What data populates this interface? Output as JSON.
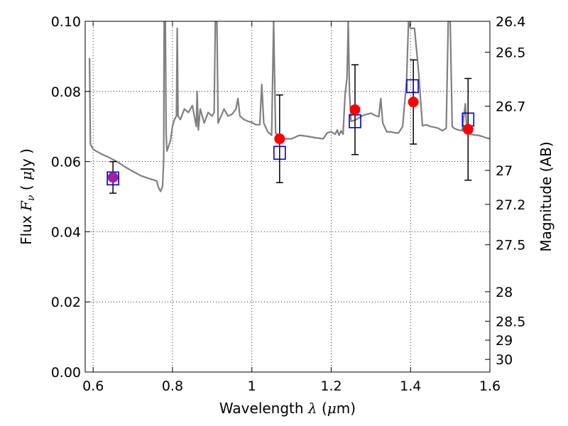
{
  "chart_data": {
    "type": "scatter",
    "title": "",
    "xlabel_parts": [
      "Wavelength ",
      "λ",
      " (",
      "μ",
      "m)"
    ],
    "ylabel_parts": [
      "Flux ",
      "F",
      "ν",
      " ( ",
      "μ",
      "Jy )"
    ],
    "y2label": "Magnitude (AB)",
    "xlim": [
      0.58,
      1.6
    ],
    "ylim": [
      0.0,
      0.1
    ],
    "x_ticks": [
      0.6,
      0.8,
      1.0,
      1.2,
      1.4,
      1.6
    ],
    "x_tick_labels": [
      "0.6",
      "0.8",
      "1",
      "1.2",
      "1.4",
      "1.6"
    ],
    "y_ticks": [
      0.0,
      0.02,
      0.04,
      0.06,
      0.08,
      0.1
    ],
    "y_tick_labels": [
      "0.00",
      "0.02",
      "0.04",
      "0.06",
      "0.08",
      "0.10"
    ],
    "y2_ticks": [
      {
        "label": "26.4",
        "flux": 0.1
      },
      {
        "label": "26.5",
        "flux": 0.0912
      },
      {
        "label": "26.7",
        "flux": 0.0758
      },
      {
        "label": "27",
        "flux": 0.0575
      },
      {
        "label": "27.2",
        "flux": 0.0478
      },
      {
        "label": "27.5",
        "flux": 0.0363
      },
      {
        "label": "28",
        "flux": 0.0229
      },
      {
        "label": "28.5",
        "flux": 0.0145
      },
      {
        "label": "29",
        "flux": 0.0091
      },
      {
        "label": "30",
        "flux": 0.0036
      }
    ],
    "grid": true,
    "model_spectrum": {
      "color": "#808080",
      "points": [
        [
          0.591,
          0.0895
        ],
        [
          0.593,
          0.065
        ],
        [
          0.6,
          0.0635
        ],
        [
          0.62,
          0.0622
        ],
        [
          0.64,
          0.0612
        ],
        [
          0.66,
          0.06
        ],
        [
          0.68,
          0.0585
        ],
        [
          0.7,
          0.0572
        ],
        [
          0.72,
          0.056
        ],
        [
          0.74,
          0.0552
        ],
        [
          0.76,
          0.0545
        ],
        [
          0.765,
          0.0525
        ],
        [
          0.77,
          0.0515
        ],
        [
          0.775,
          0.053
        ],
        [
          0.778,
          0.061
        ],
        [
          0.779,
          0.1
        ],
        [
          0.782,
          0.1
        ],
        [
          0.784,
          0.068
        ],
        [
          0.786,
          0.063
        ],
        [
          0.795,
          0.066
        ],
        [
          0.8,
          0.07
        ],
        [
          0.805,
          0.072
        ],
        [
          0.81,
          0.073
        ],
        [
          0.812,
          0.098
        ],
        [
          0.814,
          0.073
        ],
        [
          0.82,
          0.072
        ],
        [
          0.83,
          0.075
        ],
        [
          0.84,
          0.074
        ],
        [
          0.85,
          0.076
        ],
        [
          0.86,
          0.07
        ],
        [
          0.862,
          0.08
        ],
        [
          0.865,
          0.069
        ],
        [
          0.87,
          0.075
        ],
        [
          0.88,
          0.071
        ],
        [
          0.89,
          0.074
        ],
        [
          0.9,
          0.073
        ],
        [
          0.905,
          0.074
        ],
        [
          0.908,
          0.1
        ],
        [
          0.912,
          0.1
        ],
        [
          0.915,
          0.071
        ],
        [
          0.93,
          0.075
        ],
        [
          0.94,
          0.073
        ],
        [
          0.95,
          0.0735
        ],
        [
          0.96,
          0.075
        ],
        [
          0.965,
          0.078
        ],
        [
          0.97,
          0.073
        ],
        [
          0.98,
          0.072
        ],
        [
          0.99,
          0.0715
        ],
        [
          1.0,
          0.0712
        ],
        [
          1.01,
          0.0705
        ],
        [
          1.02,
          0.0705
        ],
        [
          1.025,
          0.082
        ],
        [
          1.03,
          0.071
        ],
        [
          1.04,
          0.0685
        ],
        [
          1.05,
          0.0675
        ],
        [
          1.055,
          0.1
        ],
        [
          1.06,
          0.068
        ],
        [
          1.07,
          0.0675
        ],
        [
          1.08,
          0.0665
        ],
        [
          1.1,
          0.0665
        ],
        [
          1.12,
          0.0675
        ],
        [
          1.14,
          0.0672
        ],
        [
          1.16,
          0.0668
        ],
        [
          1.18,
          0.0665
        ],
        [
          1.19,
          0.0682
        ],
        [
          1.2,
          0.0685
        ],
        [
          1.21,
          0.0678
        ],
        [
          1.215,
          0.069
        ],
        [
          1.22,
          0.0675
        ],
        [
          1.225,
          0.0688
        ],
        [
          1.23,
          0.0678
        ],
        [
          1.235,
          0.079
        ],
        [
          1.24,
          0.084
        ],
        [
          1.243,
          0.1
        ],
        [
          1.246,
          0.08
        ],
        [
          1.25,
          0.0715
        ],
        [
          1.26,
          0.0718
        ],
        [
          1.27,
          0.0725
        ],
        [
          1.28,
          0.0732
        ],
        [
          1.29,
          0.0735
        ],
        [
          1.3,
          0.0738
        ],
        [
          1.31,
          0.0732
        ],
        [
          1.32,
          0.0728
        ],
        [
          1.325,
          0.078
        ],
        [
          1.33,
          0.071
        ],
        [
          1.34,
          0.0685
        ],
        [
          1.35,
          0.0685
        ],
        [
          1.36,
          0.0682
        ],
        [
          1.37,
          0.0682
        ],
        [
          1.38,
          0.07
        ],
        [
          1.39,
          0.083
        ],
        [
          1.395,
          0.1
        ],
        [
          1.4,
          0.098
        ],
        [
          1.41,
          0.098
        ],
        [
          1.42,
          0.086
        ],
        [
          1.43,
          0.0702
        ],
        [
          1.44,
          0.0705
        ],
        [
          1.45,
          0.07
        ],
        [
          1.46,
          0.0698
        ],
        [
          1.47,
          0.0695
        ],
        [
          1.48,
          0.0688
        ],
        [
          1.49,
          0.0695
        ],
        [
          1.495,
          0.1
        ],
        [
          1.5,
          0.1
        ],
        [
          1.505,
          0.07
        ],
        [
          1.51,
          0.0695
        ],
        [
          1.52,
          0.069
        ],
        [
          1.53,
          0.0688
        ],
        [
          1.538,
          0.0765
        ],
        [
          1.542,
          0.0685
        ],
        [
          1.55,
          0.0678
        ],
        [
          1.56,
          0.0676
        ],
        [
          1.57,
          0.0675
        ],
        [
          1.58,
          0.0672
        ],
        [
          1.59,
          0.0668
        ],
        [
          1.6,
          0.0665
        ]
      ]
    },
    "series": [
      {
        "marker": "circle",
        "color": "#ff0000",
        "points": [
          {
            "x": 0.65,
            "y": 0.0555,
            "yerr": 0.0045
          },
          {
            "x": 1.07,
            "y": 0.0665,
            "yerr": 0.0125
          },
          {
            "x": 1.26,
            "y": 0.0748,
            "yerr": 0.0128
          },
          {
            "x": 1.407,
            "y": 0.077,
            "yerr": 0.012
          },
          {
            "x": 1.545,
            "y": 0.0692,
            "yerr": 0.0145
          }
        ]
      },
      {
        "marker": "square-open",
        "color": "#0000cc",
        "points": [
          {
            "x": 0.65,
            "y": 0.0552
          },
          {
            "x": 1.07,
            "y": 0.0625
          },
          {
            "x": 1.26,
            "y": 0.0715
          },
          {
            "x": 1.405,
            "y": 0.0815
          },
          {
            "x": 1.545,
            "y": 0.072
          }
        ]
      }
    ],
    "overlap_color": "#a020a0"
  }
}
